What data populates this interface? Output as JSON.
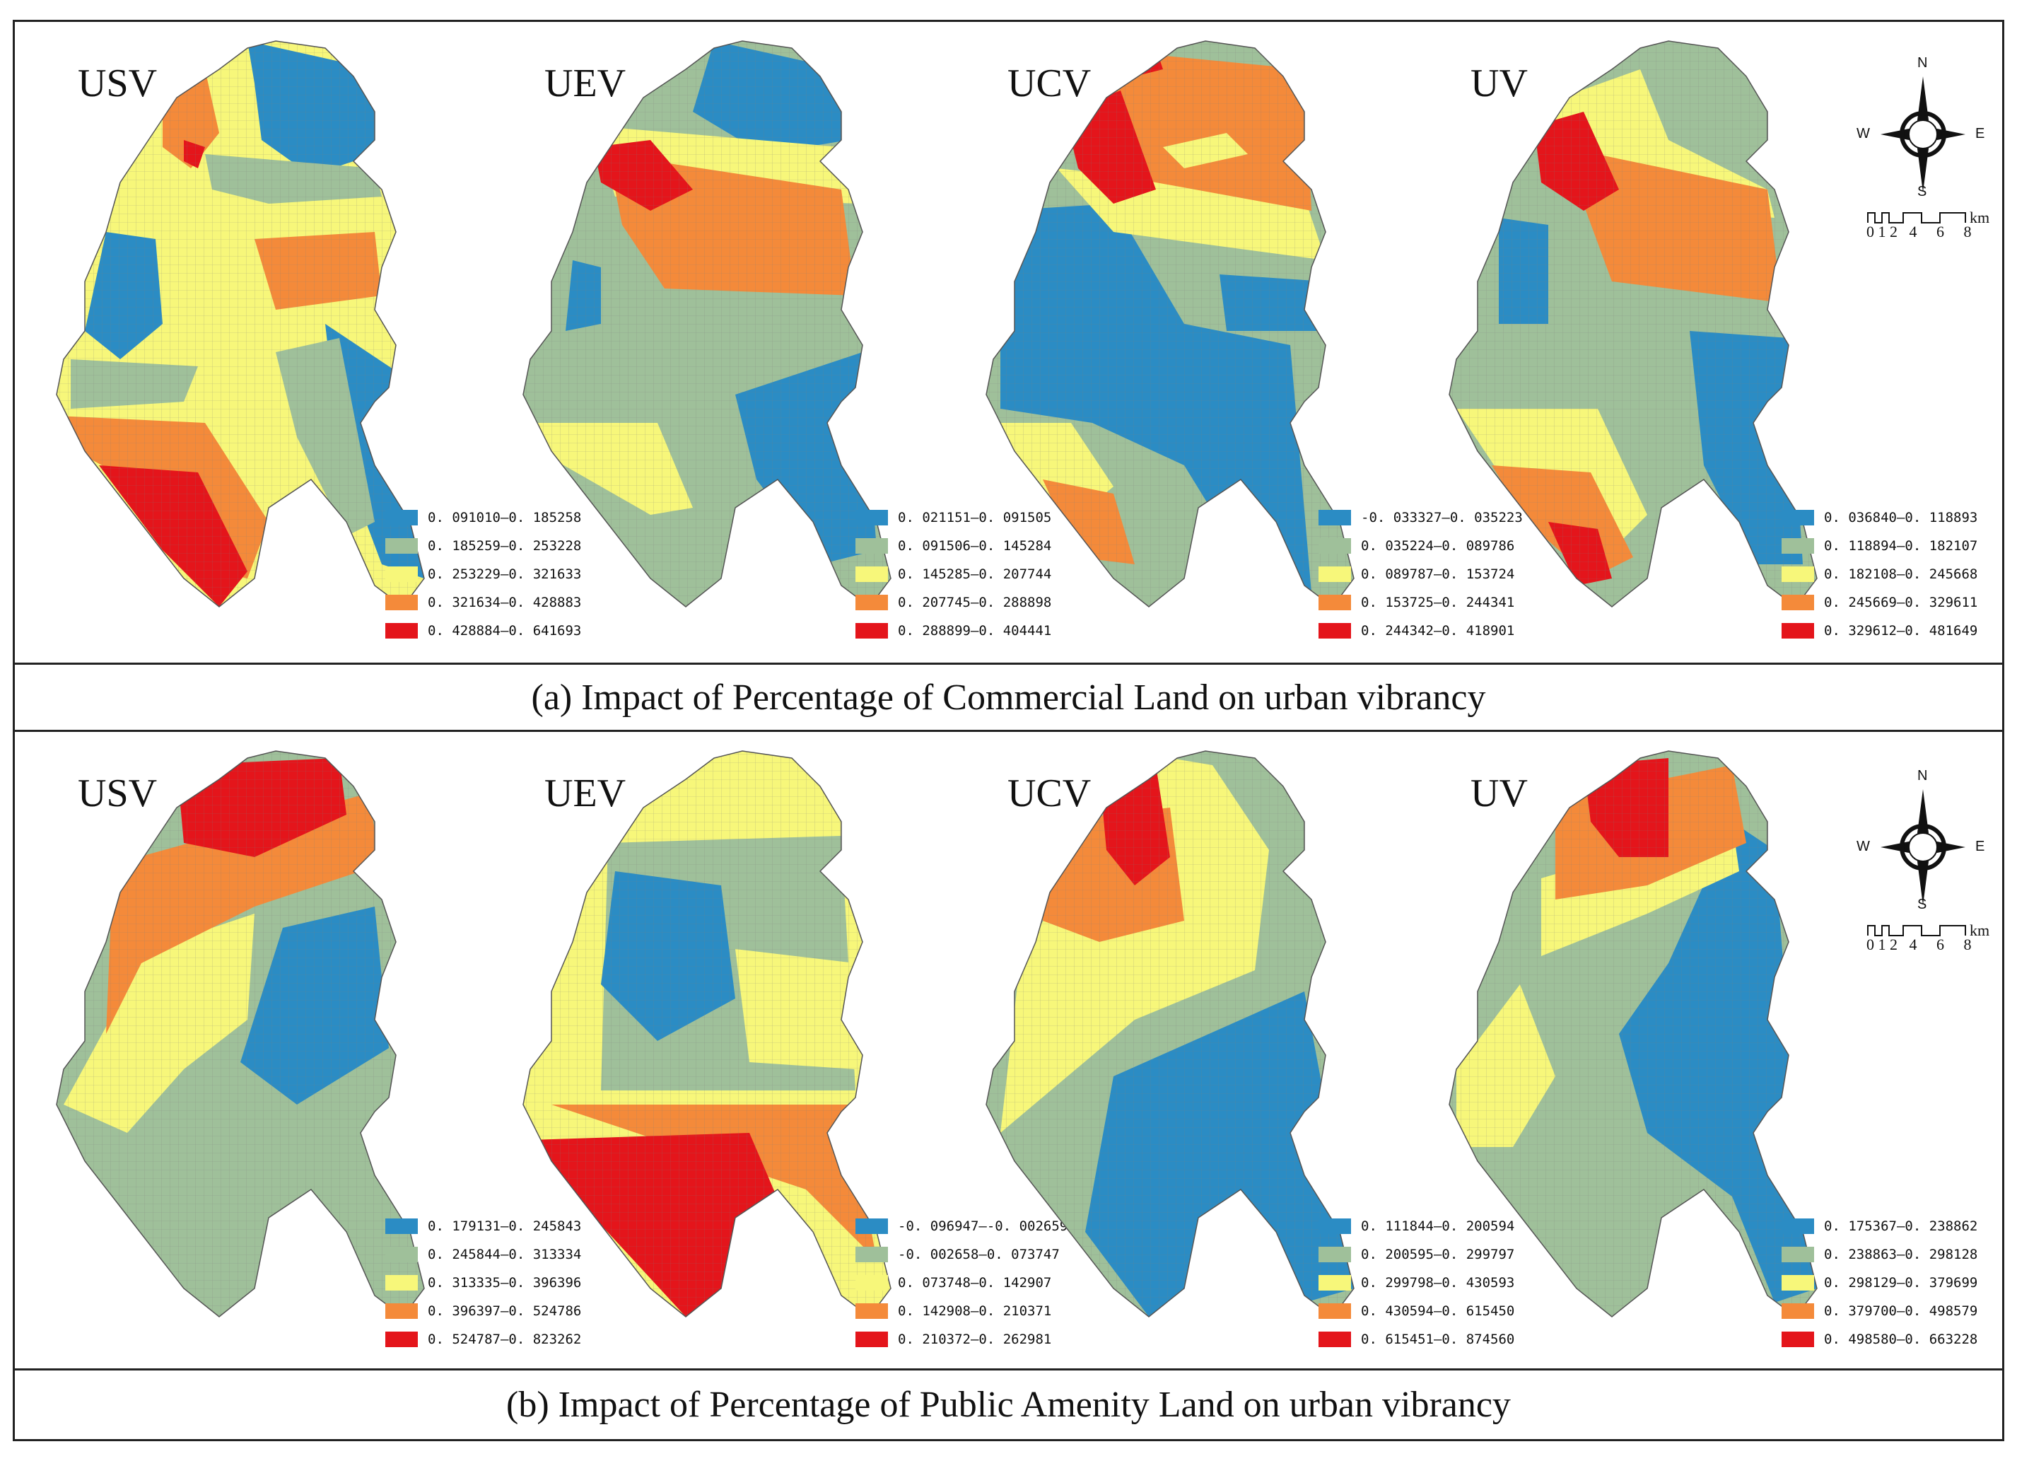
{
  "colors": {
    "c1": "#2b8cc4",
    "c2": "#9fc09a",
    "c3": "#f7f77a",
    "c4": "#f48a3a",
    "c5": "#e4151b",
    "grid": "#7a7a7a"
  },
  "sections": [
    {
      "caption": "(a) Impact of Percentage of Commercial Land on urban vibrancy",
      "panels": [
        {
          "label": "USV",
          "legend": [
            "0. 091010—0. 185258",
            "0. 185259—0. 253228",
            "0. 253229—0. 321633",
            "0. 321634—0. 428883",
            "0. 428884—0. 641693"
          ]
        },
        {
          "label": "UEV",
          "legend": [
            "0. 021151—0. 091505",
            "0. 091506—0. 145284",
            "0. 145285—0. 207744",
            "0. 207745—0. 288898",
            "0. 288899—0. 404441"
          ]
        },
        {
          "label": "UCV",
          "legend": [
            "-0. 033327—0. 035223",
            "0. 035224—0. 089786",
            "0. 089787—0. 153724",
            "0. 153725—0. 244341",
            "0. 244342—0. 418901"
          ]
        },
        {
          "label": "UV",
          "legend": [
            "0. 036840—0. 118893",
            "0. 118894—0. 182107",
            "0. 182108—0. 245668",
            "0. 245669—0. 329611",
            "0. 329612—0. 481649"
          ]
        }
      ]
    },
    {
      "caption": "(b) Impact of Percentage of Public Amenity Land on urban vibrancy",
      "panels": [
        {
          "label": "USV",
          "legend": [
            "0. 179131—0. 245843",
            "0. 245844—0. 313334",
            "0. 313335—0. 396396",
            "0. 396397—0. 524786",
            "0. 524787—0. 823262"
          ]
        },
        {
          "label": "UEV",
          "legend": [
            "-0. 096947—-0. 002659",
            "-0. 002658—0. 073747",
            "0. 073748—0. 142907",
            "0. 142908—0. 210371",
            "0. 210372—0. 262981"
          ]
        },
        {
          "label": "UCV",
          "legend": [
            "0. 111844—0. 200594",
            "0. 200595—0. 299797",
            "0. 299798—0. 430593",
            "0. 430594—0. 615450",
            "0. 615451—0. 874560"
          ]
        },
        {
          "label": "UV",
          "legend": [
            "0. 175367—0. 238862",
            "0. 238863—0. 298128",
            "0. 298129—0. 379699",
            "0. 379700—0. 498579",
            "0. 498580—0. 663228"
          ]
        }
      ]
    }
  ],
  "compass": {
    "n": "N",
    "s": "S",
    "e": "E",
    "w": "W"
  },
  "scale": {
    "ticks": "0 1 2   4     6     8",
    "unit": "km"
  }
}
